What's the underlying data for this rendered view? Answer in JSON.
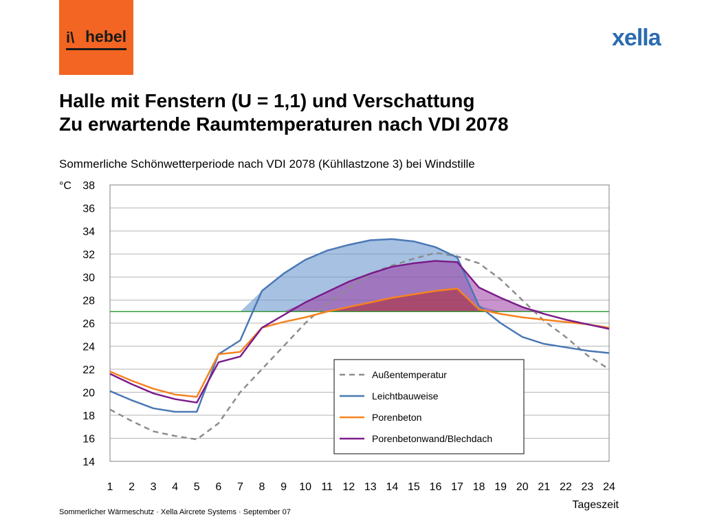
{
  "logo": {
    "text": "hebel",
    "glyph": "i\\",
    "color": "#f26522"
  },
  "brand": {
    "text": "xella",
    "color": "#2b6cb0"
  },
  "header": {
    "title_line1": "Halle mit Fenstern (U = 1,1) und Verschattung",
    "title_line2": "Zu erwartende Raumtemperaturen nach VDI 2078",
    "subtitle": "Sommerliche Schönwetterperiode nach VDI 2078 (Kühllastzone 3) bei Windstille"
  },
  "footer": {
    "text": "Sommerlicher Wärmeschutz · Xella Aircrete Systems · September 07"
  },
  "chart_data": {
    "type": "line",
    "xlabel": "Tageszeit",
    "ylabel": "°C",
    "x": [
      1,
      2,
      3,
      4,
      5,
      6,
      7,
      8,
      9,
      10,
      11,
      12,
      13,
      14,
      15,
      16,
      17,
      18,
      19,
      20,
      21,
      22,
      23,
      24
    ],
    "ylim": [
      14,
      38
    ],
    "yticks": [
      14,
      16,
      18,
      20,
      22,
      24,
      26,
      28,
      30,
      32,
      34,
      36,
      38
    ],
    "grid": "horizontal",
    "reference_line": {
      "value": 27,
      "color": "#3a9a3a"
    },
    "legend_position": "lower-right",
    "series": [
      {
        "name": "Außentemperatur",
        "color": "#8c8c8c",
        "dashed": true,
        "values": [
          18.5,
          17.5,
          16.6,
          16.2,
          15.9,
          17.3,
          20.0,
          22.0,
          24.0,
          26.0,
          27.7,
          29.0,
          30.3,
          31.0,
          31.6,
          32.1,
          31.8,
          31.2,
          29.8,
          28.0,
          26.2,
          24.8,
          23.2,
          22.0
        ]
      },
      {
        "name": "Leichtbauweise",
        "color": "#4a78b5",
        "values": [
          20.1,
          19.3,
          18.6,
          18.3,
          18.3,
          23.3,
          24.5,
          28.8,
          30.3,
          31.5,
          32.3,
          32.8,
          33.2,
          33.3,
          33.1,
          32.6,
          31.7,
          27.5,
          26.0,
          24.8,
          24.2,
          23.9,
          23.6,
          23.4
        ]
      },
      {
        "name": "Porenbeton",
        "color": "#f5821f",
        "values": [
          21.8,
          21.0,
          20.3,
          19.8,
          19.6,
          23.3,
          23.5,
          25.6,
          26.1,
          26.5,
          27.0,
          27.4,
          27.8,
          28.2,
          28.5,
          28.8,
          29.0,
          27.2,
          26.8,
          26.5,
          26.3,
          26.1,
          25.9,
          25.6
        ]
      },
      {
        "name": "Porenbetonwand/Blechdach",
        "color": "#7b1b8a",
        "values": [
          21.6,
          20.7,
          19.9,
          19.4,
          19.1,
          22.6,
          23.1,
          25.6,
          26.7,
          27.8,
          28.7,
          29.6,
          30.3,
          30.9,
          31.2,
          31.4,
          31.3,
          29.1,
          28.2,
          27.4,
          26.8,
          26.3,
          25.9,
          25.5
        ]
      }
    ]
  }
}
